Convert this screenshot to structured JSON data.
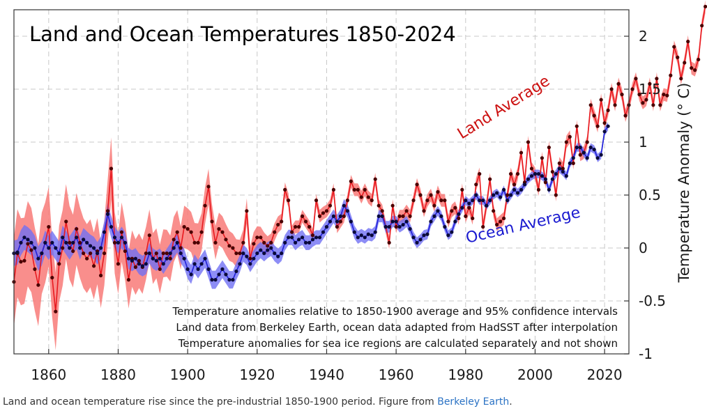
{
  "chart_data": {
    "type": "line",
    "title": "Land and Ocean Temperatures 1850-2024",
    "xlabel": "",
    "ylabel": "Temperature Anomaly (° C)",
    "xlim": [
      1850,
      2027
    ],
    "ylim": [
      -1,
      2.25
    ],
    "xticks": [
      1860,
      1880,
      1900,
      1920,
      1940,
      1960,
      1980,
      2000,
      2020
    ],
    "yticks": [
      2,
      1.5,
      1,
      0.5,
      0,
      -0.5,
      -1
    ],
    "ytick_labels": [
      "2",
      "1.5",
      "1",
      "0.5",
      "0",
      "-0.5",
      "-1"
    ],
    "grid": true,
    "series": [
      {
        "name": "Land Average",
        "color": "#e8191f",
        "band_color": "#f87a78",
        "x_start": 1850,
        "values": [
          -0.32,
          -0.05,
          -0.13,
          -0.12,
          0.04,
          -0.02,
          -0.2,
          -0.35,
          -0.05,
          0.05,
          0.2,
          -0.28,
          -0.6,
          -0.15,
          0.0,
          0.25,
          0.05,
          -0.03,
          0.18,
          0.05,
          -0.05,
          -0.1,
          -0.05,
          -0.17,
          -0.03,
          -0.26,
          -0.05,
          0.35,
          0.75,
          0.05,
          -0.15,
          0.15,
          -0.03,
          -0.3,
          -0.1,
          -0.18,
          -0.12,
          -0.18,
          -0.05,
          0.12,
          -0.1,
          -0.05,
          -0.2,
          -0.05,
          -0.05,
          -0.1,
          0.08,
          0.15,
          0.0,
          0.2,
          0.18,
          0.15,
          0.05,
          0.05,
          0.15,
          0.4,
          0.58,
          0.25,
          0.05,
          0.18,
          0.15,
          0.08,
          0.02,
          0.0,
          -0.05,
          -0.05,
          0.05,
          0.35,
          -0.1,
          0.04,
          0.1,
          0.1,
          0.05,
          0.02,
          0.05,
          0.15,
          0.22,
          0.25,
          0.55,
          0.45,
          0.15,
          0.2,
          0.2,
          0.3,
          0.25,
          0.2,
          0.12,
          0.45,
          0.3,
          0.33,
          0.35,
          0.4,
          0.55,
          0.2,
          0.25,
          0.3,
          0.45,
          0.63,
          0.55,
          0.55,
          0.48,
          0.55,
          0.48,
          0.45,
          0.65,
          0.4,
          0.35,
          0.2,
          0.05,
          0.4,
          0.2,
          0.3,
          0.3,
          0.35,
          0.3,
          0.45,
          0.6,
          0.5,
          0.35,
          0.45,
          0.5,
          0.4,
          0.53,
          0.45,
          0.45,
          0.25,
          0.35,
          0.38,
          0.28,
          0.55,
          0.3,
          0.38,
          0.28,
          0.6,
          0.7,
          0.2,
          0.4,
          0.65,
          0.35,
          0.22,
          0.25,
          0.28,
          0.5,
          0.7,
          0.6,
          0.7,
          0.9,
          0.62,
          1.0,
          0.75,
          0.7,
          0.55,
          0.85,
          0.62,
          0.95,
          0.72,
          0.5,
          0.8,
          0.75,
          1.0,
          1.05,
          0.8,
          1.15,
          0.88,
          0.9,
          1.0,
          1.35,
          1.25,
          1.15,
          1.4,
          1.18,
          1.3,
          1.5,
          1.35,
          1.55,
          1.45,
          1.25,
          1.35,
          1.5,
          1.6,
          1.45,
          1.37,
          1.4,
          1.55,
          1.35,
          1.6,
          1.35,
          1.45,
          1.44,
          1.63,
          1.9,
          1.8,
          1.6,
          1.75,
          1.95,
          1.7,
          1.68,
          1.78,
          2.1,
          2.28
        ]
      },
      {
        "name": "Ocean Average",
        "color": "#2020d8",
        "band_color": "#7070f4",
        "x_start": 1850,
        "values": [
          -0.05,
          -0.04,
          0.05,
          0.1,
          0.08,
          0.05,
          0.0,
          -0.1,
          -0.05,
          0.05,
          0.0,
          0.05,
          0.0,
          -0.05,
          0.1,
          0.05,
          0.0,
          0.05,
          0.1,
          0.0,
          0.08,
          0.05,
          0.02,
          0.0,
          -0.05,
          0.0,
          0.15,
          0.32,
          0.2,
          0.1,
          0.05,
          0.1,
          0.05,
          -0.1,
          -0.12,
          -0.1,
          -0.15,
          -0.17,
          -0.15,
          -0.05,
          -0.1,
          -0.12,
          -0.1,
          -0.15,
          -0.1,
          -0.05,
          0.0,
          0.05,
          -0.05,
          -0.1,
          -0.2,
          -0.25,
          -0.15,
          -0.2,
          -0.15,
          -0.1,
          -0.2,
          -0.3,
          -0.3,
          -0.25,
          -0.2,
          -0.25,
          -0.3,
          -0.3,
          -0.22,
          -0.15,
          -0.05,
          -0.08,
          -0.15,
          -0.1,
          -0.05,
          -0.02,
          -0.05,
          -0.02,
          0.0,
          -0.05,
          -0.08,
          -0.05,
          0.05,
          0.1,
          0.1,
          0.05,
          0.08,
          0.1,
          0.05,
          0.05,
          0.08,
          0.1,
          0.1,
          0.15,
          0.2,
          0.25,
          0.3,
          0.25,
          0.3,
          0.4,
          0.35,
          0.25,
          0.15,
          0.1,
          0.12,
          0.1,
          0.13,
          0.12,
          0.15,
          0.3,
          0.3,
          0.2,
          0.2,
          0.25,
          0.25,
          0.2,
          0.22,
          0.25,
          0.18,
          0.1,
          0.05,
          0.08,
          0.12,
          0.13,
          0.25,
          0.3,
          0.35,
          0.3,
          0.2,
          0.12,
          0.15,
          0.25,
          0.32,
          0.38,
          0.45,
          0.42,
          0.45,
          0.5,
          0.45,
          0.45,
          0.4,
          0.45,
          0.5,
          0.52,
          0.48,
          0.55,
          0.45,
          0.5,
          0.55,
          0.52,
          0.55,
          0.6,
          0.65,
          0.68,
          0.7,
          0.7,
          0.68,
          0.65,
          0.55,
          0.65,
          0.7,
          0.75,
          0.72,
          0.68,
          0.8,
          0.85,
          0.95,
          0.95,
          0.9,
          0.85,
          0.95,
          0.93,
          0.85,
          0.88,
          1.1,
          1.15
        ]
      }
    ],
    "annotations": [
      "Temperature anomalies relative to 1850-1900 average and 95% confidence intervals",
      "Land data from Berkeley Earth, ocean data adapted from HadSST after interpolation",
      "Temperature anomalies for sea ice regions are calculated separately and not shown"
    ]
  },
  "caption": {
    "text": "Land and ocean temperature rise since the pre-industrial 1850-1900 period. Figure from ",
    "link_text": "Berkeley Earth",
    "end": "."
  }
}
